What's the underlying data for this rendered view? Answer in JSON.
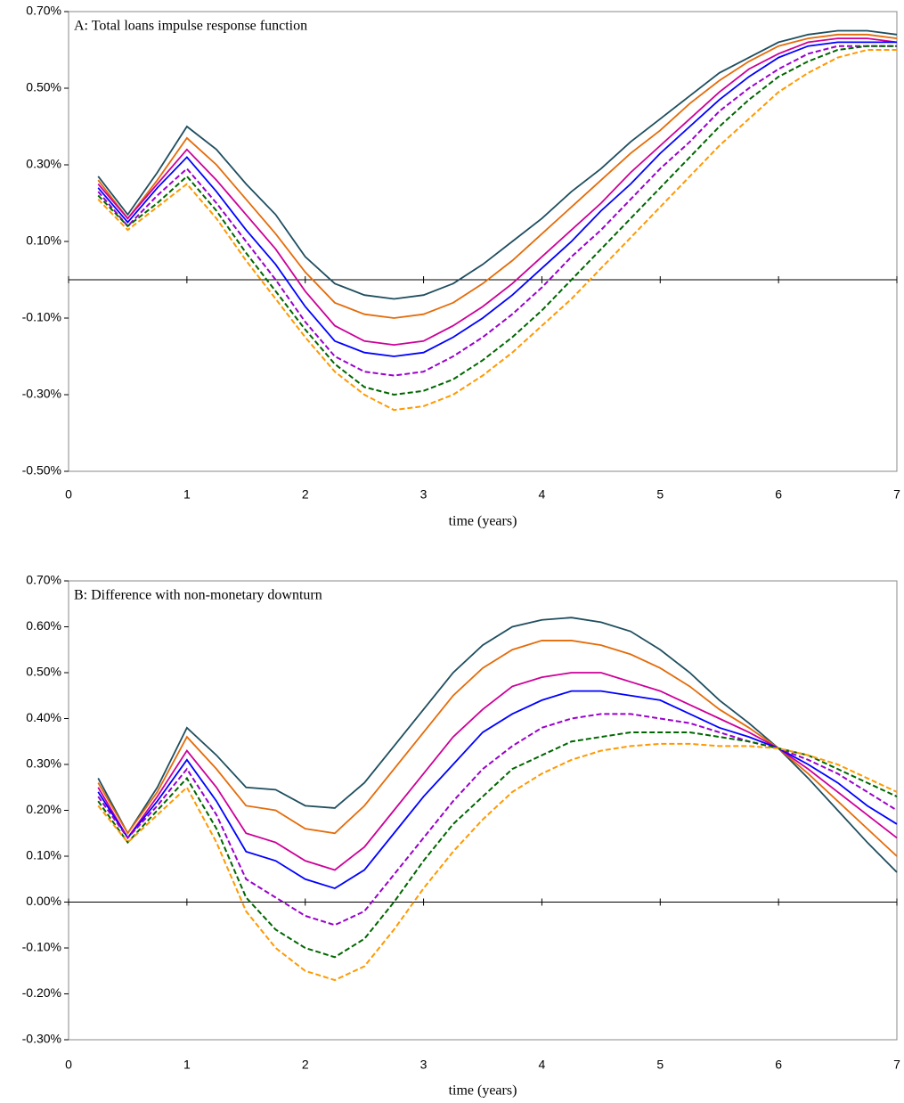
{
  "chart_data": [
    {
      "type": "line",
      "title": "A: Total loans impulse response function",
      "xlabel": "time (years)",
      "x": [
        0.25,
        0.5,
        0.75,
        1,
        1.25,
        1.5,
        1.75,
        2,
        2.25,
        2.5,
        2.75,
        3,
        3.25,
        3.5,
        3.75,
        4,
        4.25,
        4.5,
        4.75,
        5,
        5.25,
        5.5,
        5.75,
        6,
        6.25,
        6.5,
        6.75,
        7
      ],
      "xlim": [
        0,
        7
      ],
      "xticks": [
        0,
        1,
        2,
        3,
        4,
        5,
        6,
        7
      ],
      "ylim": [
        -0.5,
        0.7
      ],
      "yticks": [
        {
          "value": -0.5,
          "label": "-0.50%"
        },
        {
          "value": -0.3,
          "label": "-0.30%"
        },
        {
          "value": -0.1,
          "label": "-0.10%"
        },
        {
          "value": 0.1,
          "label": "0.10%"
        },
        {
          "value": 0.3,
          "label": "0.30%"
        },
        {
          "value": 0.5,
          "label": "0.50%"
        },
        {
          "value": 0.7,
          "label": "0.70%"
        }
      ],
      "series": [
        {
          "color": "#1f4e5f",
          "dash": false,
          "values": [
            0.27,
            0.17,
            0.28,
            0.4,
            0.34,
            0.25,
            0.17,
            0.06,
            -0.01,
            -0.04,
            -0.05,
            -0.04,
            -0.01,
            0.04,
            0.1,
            0.16,
            0.23,
            0.29,
            0.36,
            0.42,
            0.48,
            0.54,
            0.58,
            0.62,
            0.64,
            0.65,
            0.65,
            0.64
          ]
        },
        {
          "color": "#e46c0a",
          "dash": false,
          "values": [
            0.26,
            0.16,
            0.26,
            0.37,
            0.3,
            0.21,
            0.12,
            0.02,
            -0.06,
            -0.09,
            -0.1,
            -0.09,
            -0.06,
            -0.01,
            0.05,
            0.12,
            0.19,
            0.26,
            0.33,
            0.39,
            0.46,
            0.52,
            0.57,
            0.61,
            0.63,
            0.64,
            0.64,
            0.63
          ]
        },
        {
          "color": "#cc0099",
          "dash": false,
          "values": [
            0.25,
            0.16,
            0.25,
            0.34,
            0.26,
            0.17,
            0.08,
            -0.03,
            -0.12,
            -0.16,
            -0.17,
            -0.16,
            -0.12,
            -0.07,
            -0.01,
            0.06,
            0.13,
            0.2,
            0.28,
            0.35,
            0.42,
            0.49,
            0.55,
            0.59,
            0.62,
            0.63,
            0.63,
            0.62
          ]
        },
        {
          "color": "#0000ff",
          "dash": false,
          "values": [
            0.24,
            0.15,
            0.24,
            0.32,
            0.23,
            0.13,
            0.04,
            -0.07,
            -0.16,
            -0.19,
            -0.2,
            -0.19,
            -0.15,
            -0.1,
            -0.04,
            0.03,
            0.1,
            0.18,
            0.25,
            0.33,
            0.4,
            0.47,
            0.53,
            0.58,
            0.61,
            0.62,
            0.62,
            0.62
          ]
        },
        {
          "color": "#9900cc",
          "dash": true,
          "values": [
            0.23,
            0.14,
            0.22,
            0.29,
            0.2,
            0.1,
            0.0,
            -0.11,
            -0.2,
            -0.24,
            -0.25,
            -0.24,
            -0.2,
            -0.15,
            -0.09,
            -0.02,
            0.06,
            0.13,
            0.21,
            0.29,
            0.36,
            0.44,
            0.5,
            0.55,
            0.59,
            0.61,
            0.61,
            0.61
          ]
        },
        {
          "color": "#006600",
          "dash": true,
          "values": [
            0.22,
            0.14,
            0.2,
            0.27,
            0.18,
            0.07,
            -0.03,
            -0.13,
            -0.22,
            -0.28,
            -0.3,
            -0.29,
            -0.26,
            -0.21,
            -0.15,
            -0.08,
            0.0,
            0.08,
            0.16,
            0.24,
            0.32,
            0.4,
            0.47,
            0.53,
            0.57,
            0.6,
            0.61,
            0.61
          ]
        },
        {
          "color": "#ff9900",
          "dash": true,
          "values": [
            0.21,
            0.13,
            0.19,
            0.25,
            0.16,
            0.05,
            -0.05,
            -0.15,
            -0.24,
            -0.3,
            -0.34,
            -0.33,
            -0.3,
            -0.25,
            -0.19,
            -0.12,
            -0.05,
            0.03,
            0.11,
            0.19,
            0.27,
            0.35,
            0.42,
            0.49,
            0.54,
            0.58,
            0.6,
            0.6
          ]
        }
      ]
    },
    {
      "type": "line",
      "title": "B: Difference with non-monetary downturn",
      "xlabel": "time (years)",
      "x": [
        0.25,
        0.5,
        0.75,
        1,
        1.25,
        1.5,
        1.75,
        2,
        2.25,
        2.5,
        2.75,
        3,
        3.25,
        3.5,
        3.75,
        4,
        4.25,
        4.5,
        4.75,
        5,
        5.25,
        5.5,
        5.75,
        6,
        6.25,
        6.5,
        6.75,
        7
      ],
      "xlim": [
        0,
        7
      ],
      "xticks": [
        0,
        1,
        2,
        3,
        4,
        5,
        6,
        7
      ],
      "ylim": [
        -0.3,
        0.7
      ],
      "yticks": [
        {
          "value": -0.3,
          "label": "-0.30%"
        },
        {
          "value": -0.2,
          "label": "-0.20%"
        },
        {
          "value": -0.1,
          "label": "-0.10%"
        },
        {
          "value": 0,
          "label": "0.00%"
        },
        {
          "value": 0.1,
          "label": "0.10%"
        },
        {
          "value": 0.2,
          "label": "0.20%"
        },
        {
          "value": 0.3,
          "label": "0.30%"
        },
        {
          "value": 0.4,
          "label": "0.40%"
        },
        {
          "value": 0.5,
          "label": "0.50%"
        },
        {
          "value": 0.6,
          "label": "0.60%"
        },
        {
          "value": 0.7,
          "label": "0.70%"
        }
      ],
      "series": [
        {
          "color": "#1f4e5f",
          "dash": false,
          "values": [
            0.27,
            0.15,
            0.25,
            0.38,
            0.32,
            0.25,
            0.245,
            0.21,
            0.205,
            0.26,
            0.34,
            0.42,
            0.5,
            0.56,
            0.6,
            0.615,
            0.62,
            0.61,
            0.59,
            0.55,
            0.5,
            0.44,
            0.39,
            0.335,
            0.27,
            0.2,
            0.13,
            0.065
          ]
        },
        {
          "color": "#e46c0a",
          "dash": false,
          "values": [
            0.26,
            0.15,
            0.24,
            0.36,
            0.29,
            0.21,
            0.2,
            0.16,
            0.15,
            0.21,
            0.29,
            0.37,
            0.45,
            0.51,
            0.55,
            0.57,
            0.57,
            0.56,
            0.54,
            0.51,
            0.47,
            0.42,
            0.38,
            0.335,
            0.28,
            0.22,
            0.16,
            0.1
          ]
        },
        {
          "color": "#cc0099",
          "dash": false,
          "values": [
            0.25,
            0.14,
            0.23,
            0.33,
            0.25,
            0.15,
            0.13,
            0.09,
            0.07,
            0.12,
            0.2,
            0.28,
            0.36,
            0.42,
            0.47,
            0.49,
            0.5,
            0.5,
            0.48,
            0.46,
            0.43,
            0.4,
            0.37,
            0.335,
            0.29,
            0.24,
            0.19,
            0.14
          ]
        },
        {
          "color": "#0000ff",
          "dash": false,
          "values": [
            0.24,
            0.14,
            0.22,
            0.31,
            0.22,
            0.11,
            0.09,
            0.05,
            0.03,
            0.07,
            0.15,
            0.23,
            0.3,
            0.37,
            0.41,
            0.44,
            0.46,
            0.46,
            0.45,
            0.44,
            0.41,
            0.38,
            0.36,
            0.335,
            0.3,
            0.26,
            0.21,
            0.17
          ]
        },
        {
          "color": "#9900cc",
          "dash": true,
          "values": [
            0.23,
            0.14,
            0.21,
            0.29,
            0.19,
            0.05,
            0.01,
            -0.03,
            -0.05,
            -0.02,
            0.06,
            0.14,
            0.22,
            0.29,
            0.34,
            0.38,
            0.4,
            0.41,
            0.41,
            0.4,
            0.39,
            0.37,
            0.35,
            0.335,
            0.31,
            0.28,
            0.24,
            0.2
          ]
        },
        {
          "color": "#006600",
          "dash": true,
          "values": [
            0.22,
            0.13,
            0.2,
            0.27,
            0.16,
            0.01,
            -0.06,
            -0.1,
            -0.12,
            -0.08,
            0.0,
            0.09,
            0.17,
            0.23,
            0.29,
            0.32,
            0.35,
            0.36,
            0.37,
            0.37,
            0.37,
            0.36,
            0.35,
            0.335,
            0.32,
            0.29,
            0.26,
            0.23
          ]
        },
        {
          "color": "#ff9900",
          "dash": true,
          "values": [
            0.21,
            0.13,
            0.19,
            0.25,
            0.13,
            -0.02,
            -0.1,
            -0.15,
            -0.17,
            -0.14,
            -0.06,
            0.03,
            0.11,
            0.18,
            0.24,
            0.28,
            0.31,
            0.33,
            0.34,
            0.345,
            0.345,
            0.34,
            0.34,
            0.335,
            0.32,
            0.3,
            0.27,
            0.24
          ]
        }
      ]
    }
  ]
}
